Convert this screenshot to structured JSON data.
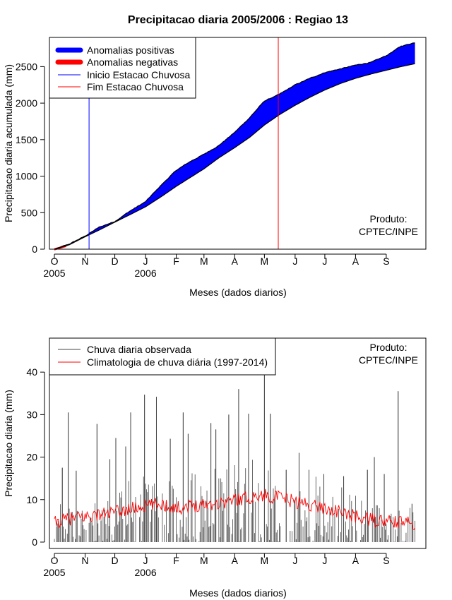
{
  "chart_data": [
    {
      "type": "area",
      "title": "Precipitacao diaria 2005/2006 : Regiao 13",
      "xlabel": "Meses (dados diarios)",
      "ylabel": "Precipitacao diaria acumulada (mm)",
      "ylim": [
        0,
        2900
      ],
      "yticks": [
        "0",
        "500",
        "1000",
        "1500",
        "2000",
        "2500"
      ],
      "ytick_values": [
        0,
        500,
        1000,
        1500,
        2000,
        2500
      ],
      "month_labels": [
        "O",
        "N",
        "D",
        "J",
        "F",
        "M",
        "A",
        "M",
        "J",
        "J",
        "A",
        "S"
      ],
      "month_day_offsets": [
        0,
        31,
        61,
        92,
        123,
        151,
        182,
        212,
        243,
        273,
        304,
        335
      ],
      "year_labels": [
        {
          "label": "2005",
          "day": 0
        },
        {
          "label": "2006",
          "day": 92
        }
      ],
      "x_range_days": [
        -5,
        375
      ],
      "last_day": 364,
      "observed_cumulative": {
        "days": [
          0,
          15,
          31,
          45,
          61,
          76,
          92,
          108,
          123,
          137,
          151,
          166,
          182,
          197,
          212,
          227,
          243,
          258,
          273,
          289,
          304,
          320,
          335,
          350,
          364
        ],
        "values": [
          0,
          70,
          180,
          300,
          380,
          520,
          650,
          880,
          1080,
          1200,
          1300,
          1420,
          1600,
          1800,
          2030,
          2120,
          2250,
          2340,
          2420,
          2470,
          2520,
          2560,
          2650,
          2780,
          2830
        ]
      },
      "climatology_cumulative": {
        "days": [
          0,
          15,
          31,
          45,
          61,
          76,
          92,
          108,
          123,
          137,
          151,
          166,
          182,
          197,
          212,
          227,
          243,
          258,
          273,
          289,
          304,
          320,
          335,
          350,
          364
        ],
        "values": [
          0,
          60,
          170,
          260,
          370,
          470,
          580,
          720,
          860,
          980,
          1100,
          1250,
          1390,
          1530,
          1700,
          1840,
          1970,
          2080,
          2180,
          2270,
          2340,
          2400,
          2450,
          2500,
          2540
        ]
      },
      "rainy_season_start_day": 35,
      "rainy_season_end_day": 226,
      "legend": [
        {
          "label": "Anomalias positivas",
          "color": "#0000ff",
          "style": "thick"
        },
        {
          "label": "Anomalias negativas",
          "color": "#ff0000",
          "style": "thick"
        },
        {
          "label": "Inicio Estacao Chuvosa",
          "color": "#0000ff",
          "style": "thin"
        },
        {
          "label": "Fim Estacao Chuvosa",
          "color": "#ff0000",
          "style": "thin"
        }
      ],
      "legend_position": "top-left",
      "annotation": [
        "Produto:",
        "CPTEC/INPE"
      ],
      "annotation_position": "bottom-right"
    },
    {
      "type": "line",
      "xlabel": "Meses (dados diarios)",
      "ylabel": "Precipitacao diaria (mm)",
      "ylim": [
        -1.5,
        48
      ],
      "yticks": [
        "0",
        "10",
        "20",
        "30",
        "40"
      ],
      "ytick_values": [
        0,
        10,
        20,
        30,
        40
      ],
      "month_labels": [
        "O",
        "N",
        "D",
        "J",
        "F",
        "M",
        "A",
        "M",
        "J",
        "J",
        "A",
        "S"
      ],
      "month_day_offsets": [
        0,
        31,
        61,
        92,
        123,
        151,
        182,
        212,
        243,
        273,
        304,
        335
      ],
      "year_labels": [
        {
          "label": "2005",
          "day": 0
        },
        {
          "label": "2006",
          "day": 92
        }
      ],
      "x_range_days": [
        -5,
        375
      ],
      "last_day": 364,
      "observed_daily_peaks": [
        {
          "day": 8,
          "value": 17.5
        },
        {
          "day": 14,
          "value": 30.5
        },
        {
          "day": 22,
          "value": 16.8
        },
        {
          "day": 43,
          "value": 27.8
        },
        {
          "day": 56,
          "value": 19.5
        },
        {
          "day": 62,
          "value": 24.5
        },
        {
          "day": 72,
          "value": 22.5
        },
        {
          "day": 77,
          "value": 30.5
        },
        {
          "day": 91,
          "value": 34.7
        },
        {
          "day": 103,
          "value": 34.2
        },
        {
          "day": 117,
          "value": 24.3
        },
        {
          "day": 130,
          "value": 30.5
        },
        {
          "day": 135,
          "value": 25.5
        },
        {
          "day": 158,
          "value": 28.0
        },
        {
          "day": 163,
          "value": 26.5
        },
        {
          "day": 176,
          "value": 30.0
        },
        {
          "day": 186,
          "value": 36.0
        },
        {
          "day": 196,
          "value": 30.2
        },
        {
          "day": 212,
          "value": 40.5
        },
        {
          "day": 218,
          "value": 30.2
        },
        {
          "day": 234,
          "value": 17.0
        },
        {
          "day": 247,
          "value": 21.0
        },
        {
          "day": 257,
          "value": 17.0
        },
        {
          "day": 272,
          "value": 16.0
        },
        {
          "day": 292,
          "value": 15.5
        },
        {
          "day": 316,
          "value": 17.0
        },
        {
          "day": 323,
          "value": 20.0
        },
        {
          "day": 333,
          "value": 16.0
        },
        {
          "day": 347,
          "value": 35.5
        },
        {
          "day": 361,
          "value": 9.0
        }
      ],
      "climatology_mean": {
        "days": [
          0,
          15,
          31,
          45,
          61,
          76,
          92,
          108,
          123,
          137,
          151,
          166,
          182,
          197,
          212,
          227,
          243,
          258,
          273,
          289,
          304,
          320,
          335,
          350,
          364
        ],
        "values": [
          4.5,
          5.5,
          6.0,
          6.5,
          7.0,
          7.8,
          8.5,
          9.0,
          8.0,
          8.5,
          9.0,
          9.2,
          10.0,
          10.5,
          11.0,
          10.5,
          9.5,
          8.8,
          8.0,
          7.0,
          6.0,
          5.2,
          4.8,
          4.6,
          4.5
        ]
      },
      "legend": [
        {
          "label": "Chuva diaria observada",
          "color": "#000000"
        },
        {
          "label": "Climatologia de chuva diária (1997-2014)",
          "color": "#ff0000"
        }
      ],
      "legend_position": "top-left",
      "annotation": [
        "Produto:",
        "CPTEC/INPE"
      ],
      "annotation_position": "top-right"
    }
  ]
}
